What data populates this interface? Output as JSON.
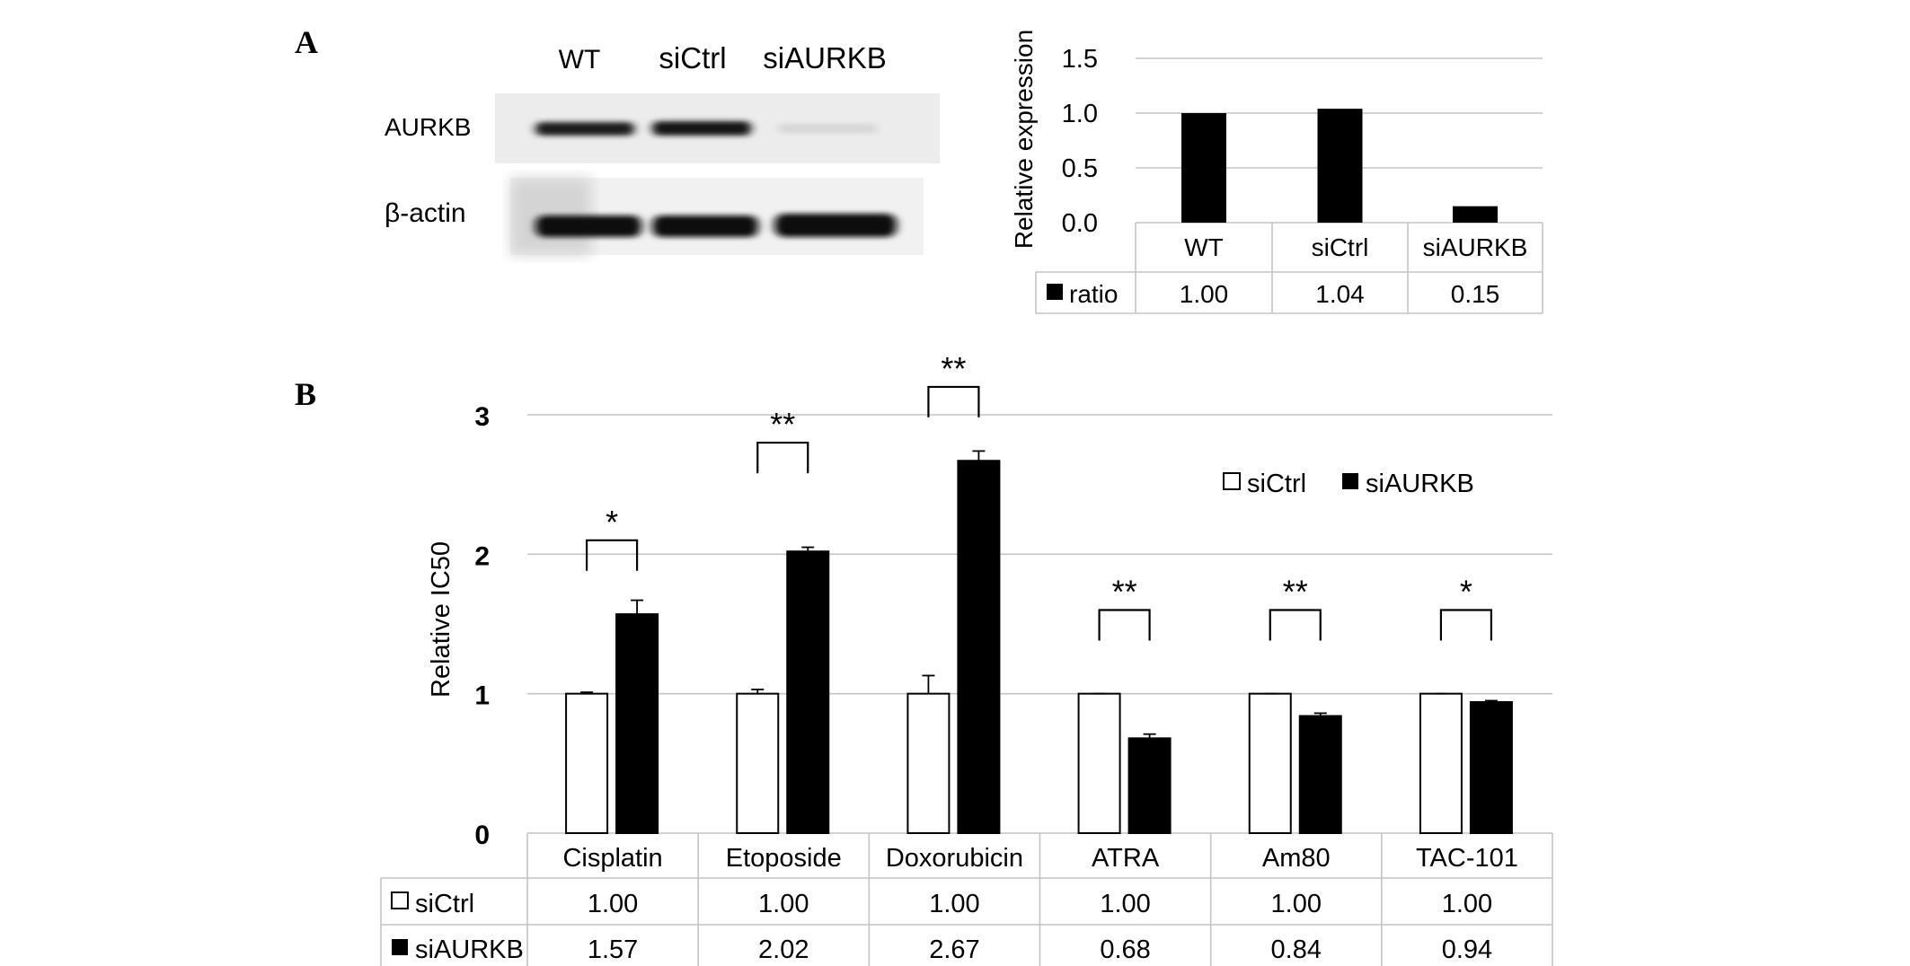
{
  "panels": {
    "a": "A",
    "b": "B"
  },
  "blot": {
    "lanes": [
      "WT",
      "siCtrl",
      "siAURKB"
    ],
    "rows": [
      "AURKB",
      "β-actin"
    ]
  },
  "chart_data": [
    {
      "type": "bar",
      "ylabel": "Relative expression",
      "ylim": [
        0,
        1.5
      ],
      "yticks": [
        "0.0",
        "0.5",
        "1.0",
        "1.5"
      ],
      "categories": [
        "WT",
        "siCtrl",
        "siAURKB"
      ],
      "series": [
        {
          "name": "ratio",
          "values": [
            1.0,
            1.04,
            0.15
          ],
          "labels": [
            "1.00",
            "1.04",
            "0.15"
          ],
          "color": "#000000"
        }
      ],
      "grid": true,
      "legend": "table"
    },
    {
      "type": "bar",
      "ylabel": "Relative IC50",
      "ylim": [
        0,
        3
      ],
      "yticks": [
        "0",
        "1",
        "2",
        "3"
      ],
      "categories": [
        "Cisplatin",
        "Etoposide",
        "Doxorubicin",
        "ATRA",
        "Am80",
        "TAC-101"
      ],
      "series": [
        {
          "name": "siCtrl",
          "values": [
            1.0,
            1.0,
            1.0,
            1.0,
            1.0,
            1.0
          ],
          "labels": [
            "1.00",
            "1.00",
            "1.00",
            "1.00",
            "1.00",
            "1.00"
          ],
          "errors": [
            0.01,
            0.03,
            0.13,
            0.0,
            0.0,
            0.0
          ],
          "color": "#ffffff"
        },
        {
          "name": "siAURKB",
          "values": [
            1.57,
            2.02,
            2.67,
            0.68,
            0.84,
            0.94
          ],
          "labels": [
            "1.57",
            "2.02",
            "2.67",
            "0.68",
            "0.84",
            "0.94"
          ],
          "errors": [
            0.1,
            0.03,
            0.07,
            0.03,
            0.02,
            0.01
          ],
          "color": "#000000"
        }
      ],
      "significance": [
        "*",
        "**",
        "**",
        "**",
        "**",
        "*"
      ],
      "significance_heights": [
        2.1,
        2.8,
        3.2,
        1.6,
        1.6,
        1.6
      ],
      "grid": true,
      "legend": "top-right"
    }
  ]
}
